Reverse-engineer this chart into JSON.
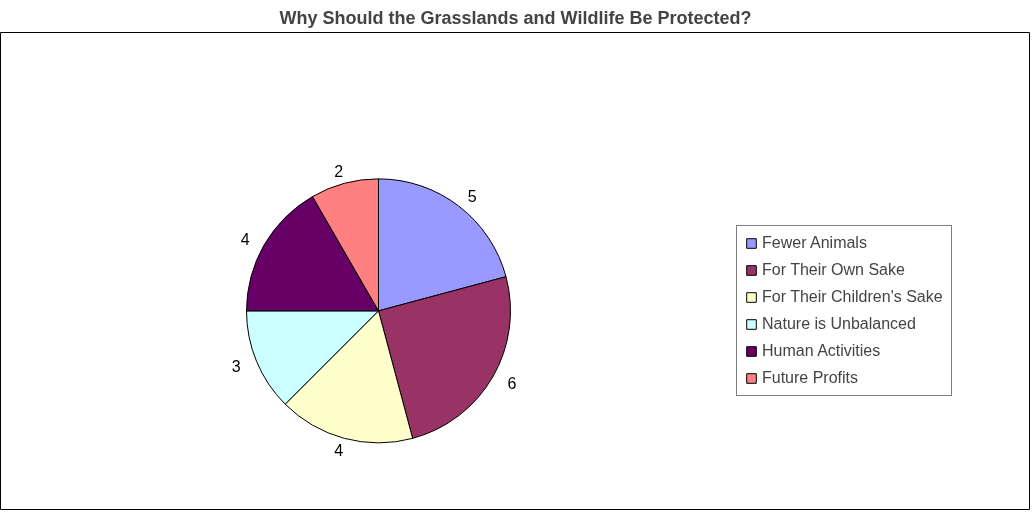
{
  "chart_data": {
    "type": "pie",
    "title": "Why Should the Grasslands and Wildlife Be Protected?",
    "categories": [
      "Fewer Animals",
      "For Their Own Sake",
      "For Their Children's Sake",
      "Nature is Unbalanced",
      "Human Activities",
      "Future Profits"
    ],
    "values": [
      5,
      6,
      4,
      3,
      4,
      2
    ],
    "colors": [
      "#9999ff",
      "#993366",
      "#ffffcc",
      "#ccffff",
      "#660066",
      "#ff8080"
    ],
    "data_labels": true,
    "legend": "right"
  }
}
